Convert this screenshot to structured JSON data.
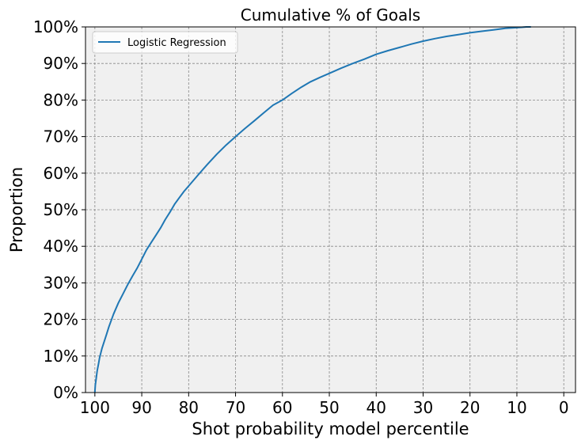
{
  "chart_data": {
    "type": "line",
    "title": "Cumulative % of Goals",
    "xlabel": "Shot probability model percentile",
    "ylabel": "Proportion",
    "xlim": [
      102,
      -2.5
    ],
    "ylim": [
      0,
      1
    ],
    "x_reversed": true,
    "x_ticks": [
      100,
      90,
      80,
      70,
      60,
      50,
      40,
      30,
      20,
      10,
      0
    ],
    "x_tick_labels": [
      "100",
      "90",
      "80",
      "70",
      "60",
      "50",
      "40",
      "30",
      "20",
      "10",
      "0"
    ],
    "y_ticks": [
      0,
      0.1,
      0.2,
      0.3,
      0.4,
      0.5,
      0.6,
      0.7,
      0.8,
      0.9,
      1.0
    ],
    "y_tick_labels": [
      "0%",
      "10%",
      "20%",
      "30%",
      "40%",
      "50%",
      "60%",
      "70%",
      "80%",
      "90%",
      "100%"
    ],
    "grid": true,
    "legend_position": "top-left",
    "background_color": "#f0f0f0",
    "series": [
      {
        "name": "Logistic Regression",
        "color": "#1f77b4",
        "x": [
          100,
          99.9,
          99.7,
          99.5,
          99.2,
          99.0,
          98.5,
          98.0,
          97.5,
          97.0,
          96.0,
          95.0,
          94.0,
          93.0,
          92.0,
          91.0,
          90.0,
          89.0,
          88.0,
          87.0,
          86.0,
          85.0,
          84.0,
          83.0,
          82.0,
          81.0,
          80.0,
          78.0,
          76.0,
          74.0,
          72.0,
          70.0,
          68.0,
          66.0,
          64.0,
          62.0,
          60.0,
          58.0,
          56.0,
          54.0,
          52.0,
          50.0,
          47.5,
          45.0,
          42.5,
          40.0,
          37.5,
          35.0,
          32.5,
          30.0,
          27.5,
          25.0,
          22.5,
          20.0,
          17.5,
          15.0,
          12.5,
          10.0,
          9.0,
          8.0,
          7.0
        ],
        "y": [
          0.0,
          0.02,
          0.04,
          0.06,
          0.08,
          0.095,
          0.12,
          0.14,
          0.16,
          0.18,
          0.215,
          0.245,
          0.27,
          0.295,
          0.318,
          0.34,
          0.365,
          0.39,
          0.41,
          0.43,
          0.45,
          0.473,
          0.493,
          0.515,
          0.533,
          0.55,
          0.565,
          0.595,
          0.624,
          0.652,
          0.677,
          0.7,
          0.722,
          0.743,
          0.765,
          0.786,
          0.8,
          0.818,
          0.835,
          0.85,
          0.862,
          0.873,
          0.887,
          0.9,
          0.912,
          0.925,
          0.935,
          0.944,
          0.953,
          0.961,
          0.968,
          0.974,
          0.979,
          0.984,
          0.988,
          0.992,
          0.996,
          0.998,
          0.999,
          1.0,
          1.0
        ]
      }
    ]
  }
}
